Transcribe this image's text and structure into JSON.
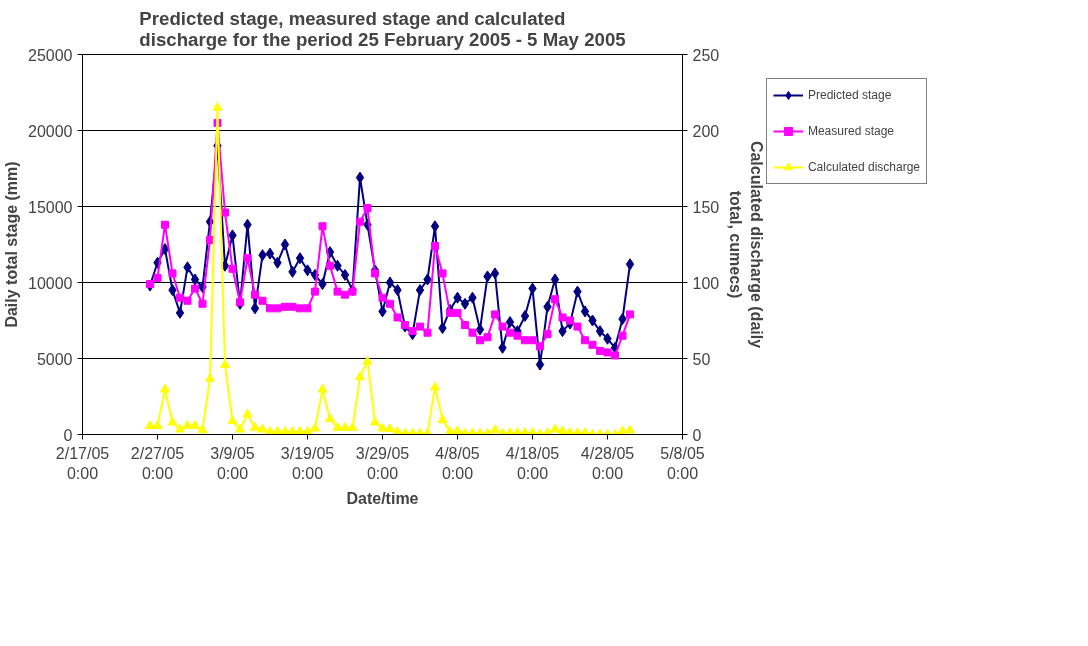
{
  "chart_data": {
    "type": "line",
    "title": "Predicted stage,  measured stage and calculated\ndischarge for the period 25 February 2005 - 5 May 2005",
    "xlabel": "Date/time",
    "ylabel": "Daily total stage (mm)",
    "y2label": "Calculated discharge (daily\ntotal, cumecs)",
    "x": [
      "2005-02-26",
      "2005-02-27",
      "2005-02-28",
      "2005-03-01",
      "2005-03-02",
      "2005-03-03",
      "2005-03-04",
      "2005-03-05",
      "2005-03-06",
      "2005-03-07",
      "2005-03-08",
      "2005-03-09",
      "2005-03-10",
      "2005-03-11",
      "2005-03-12",
      "2005-03-13",
      "2005-03-14",
      "2005-03-15",
      "2005-03-16",
      "2005-03-17",
      "2005-03-18",
      "2005-03-19",
      "2005-03-20",
      "2005-03-21",
      "2005-03-22",
      "2005-03-23",
      "2005-03-24",
      "2005-03-25",
      "2005-03-26",
      "2005-03-27",
      "2005-03-28",
      "2005-03-29",
      "2005-03-30",
      "2005-03-31",
      "2005-04-01",
      "2005-04-02",
      "2005-04-03",
      "2005-04-04",
      "2005-04-05",
      "2005-04-06",
      "2005-04-07",
      "2005-04-08",
      "2005-04-09",
      "2005-04-10",
      "2005-04-11",
      "2005-04-12",
      "2005-04-13",
      "2005-04-14",
      "2005-04-15",
      "2005-04-16",
      "2005-04-17",
      "2005-04-18",
      "2005-04-19",
      "2005-04-20",
      "2005-04-21",
      "2005-04-22",
      "2005-04-23",
      "2005-04-24",
      "2005-04-25",
      "2005-04-26",
      "2005-04-27",
      "2005-04-28",
      "2005-04-29",
      "2005-04-30",
      "2005-05-01"
    ],
    "series": [
      {
        "name": "Predicted stage",
        "color": "#000080",
        "marker": "diamond",
        "values": [
          9800,
          11300,
          12200,
          9500,
          8000,
          11000,
          10200,
          9700,
          14000,
          19000,
          11100,
          13100,
          8600,
          13800,
          8300,
          11800,
          11900,
          11300,
          12500,
          10700,
          11600,
          10800,
          10500,
          9900,
          12000,
          11100,
          10500,
          9500,
          16900,
          13800,
          10800,
          8100,
          10000,
          9500,
          7100,
          6600,
          9500,
          10200,
          13700,
          7000,
          8200,
          9000,
          8600,
          9000,
          6900,
          10400,
          10600,
          5700,
          7400,
          6800,
          7800,
          9600,
          4600,
          8400,
          10200,
          6800,
          7300,
          9400,
          8100,
          7500,
          6800,
          6300,
          5700,
          7600,
          11200
        ]
      },
      {
        "name": "Measured stage",
        "color": "#ff00ff",
        "marker": "square",
        "values": [
          9900,
          10300,
          13800,
          10600,
          9000,
          8800,
          9600,
          8600,
          12800,
          20500,
          14600,
          10900,
          8700,
          11600,
          9200,
          8800,
          8300,
          8300,
          8400,
          8400,
          8300,
          8300,
          9400,
          13700,
          11100,
          9400,
          9200,
          9400,
          14000,
          14900,
          10600,
          9000,
          8600,
          7700,
          7200,
          6800,
          7100,
          6700,
          12400,
          10600,
          8000,
          8000,
          7200,
          6700,
          6200,
          6400,
          7900,
          7100,
          6700,
          6500,
          6200,
          6200,
          5800,
          6600,
          8900,
          7700,
          7500,
          7100,
          6200,
          5900,
          5500,
          5400,
          5200,
          6500,
          7900
        ]
      },
      {
        "name": "Calculated discharge",
        "color": "#ffff00",
        "marker": "triangle",
        "axis": "y2",
        "values": [
          5.6,
          5.6,
          29.6,
          8,
          3.3,
          5.8,
          5.8,
          2.9,
          36.7,
          215,
          45.8,
          8.9,
          3.3,
          13.3,
          4.4,
          3.3,
          1.8,
          1.8,
          1.8,
          1.8,
          1.8,
          1.8,
          4,
          29.6,
          10.2,
          4.4,
          4.4,
          4.4,
          37.8,
          48,
          8,
          4,
          3.6,
          1.8,
          0.7,
          0.7,
          0.7,
          0.7,
          31,
          9.6,
          1.8,
          2.2,
          0.7,
          0.7,
          0.7,
          0.7,
          2.9,
          0.7,
          1.1,
          1.1,
          1.1,
          1.1,
          0,
          1.1,
          3.3,
          2.2,
          1.1,
          1.1,
          1.1,
          0,
          0,
          0,
          0,
          2.2,
          2.7
        ]
      }
    ],
    "xlim": [
      "2005-02-17",
      "2005-05-08"
    ],
    "xticks": [
      {
        "value": "2005-02-17",
        "label": "2/17/05\n0:00"
      },
      {
        "value": "2005-02-27",
        "label": "2/27/05\n0:00"
      },
      {
        "value": "2005-03-09",
        "label": "3/9/05\n0:00"
      },
      {
        "value": "2005-03-19",
        "label": "3/19/05\n0:00"
      },
      {
        "value": "2005-03-29",
        "label": "3/29/05\n0:00"
      },
      {
        "value": "2005-04-08",
        "label": "4/8/05\n0:00"
      },
      {
        "value": "2005-04-18",
        "label": "4/18/05\n0:00"
      },
      {
        "value": "2005-04-28",
        "label": "4/28/05\n0:00"
      },
      {
        "value": "2005-05-08",
        "label": "5/8/05\n0:00"
      }
    ],
    "ylim": [
      0,
      25000
    ],
    "yticks": [
      0,
      5000,
      10000,
      15000,
      20000,
      25000
    ],
    "y2lim": [
      0,
      250
    ],
    "y2ticks": [
      0,
      50,
      100,
      150,
      200,
      250
    ],
    "grid": "y",
    "legend": "right"
  }
}
